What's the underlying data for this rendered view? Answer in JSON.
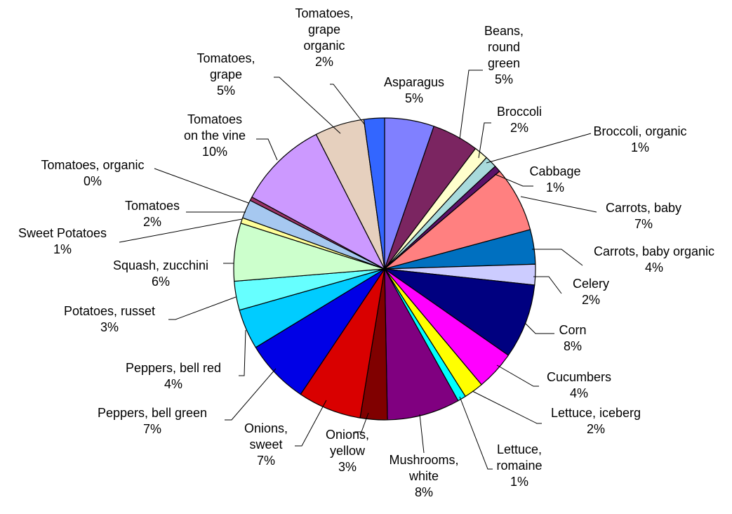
{
  "chart_data": {
    "type": "pie",
    "title": "",
    "start_angle_deg": 0,
    "direction": "clockwise",
    "slices": [
      {
        "label": "Asparagus",
        "value": 5.3,
        "pct_label": "5%",
        "color": "#8080FF"
      },
      {
        "label": "Beans, round green",
        "value": 5.0,
        "pct_label": "5%",
        "color": "#7B2561"
      },
      {
        "label": "Broccoli",
        "value": 1.5,
        "pct_label": "2%",
        "color": "#FFFFCC"
      },
      {
        "label": "Broccoli, organic",
        "value": 1.3,
        "pct_label": "1%",
        "color": "#A8DADC"
      },
      {
        "label": "Cabbage",
        "value": 0.7,
        "pct_label": "1%",
        "color": "#5B1269"
      },
      {
        "label": "Carrots, baby",
        "value": 7.0,
        "pct_label": "7%",
        "color": "#FF8080"
      },
      {
        "label": "Carrots, baby organic",
        "value": 3.7,
        "pct_label": "4%",
        "color": "#0070C0"
      },
      {
        "label": "Celery",
        "value": 2.2,
        "pct_label": "2%",
        "color": "#CCCCFF"
      },
      {
        "label": "Corn",
        "value": 8.0,
        "pct_label": "8%",
        "color": "#000080"
      },
      {
        "label": "Cucumbers",
        "value": 4.2,
        "pct_label": "4%",
        "color": "#FF00FF"
      },
      {
        "label": "Lettuce, iceberg",
        "value": 2.1,
        "pct_label": "2%",
        "color": "#FFFF00"
      },
      {
        "label": "Lettuce, romaine",
        "value": 0.9,
        "pct_label": "1%",
        "color": "#00FFFF"
      },
      {
        "label": "Mushrooms, white",
        "value": 7.8,
        "pct_label": "8%",
        "color": "#800080"
      },
      {
        "label": "Onions, yellow",
        "value": 2.9,
        "pct_label": "3%",
        "color": "#800000"
      },
      {
        "label": "Onions, sweet",
        "value": 6.8,
        "pct_label": "7%",
        "color": "#D90000"
      },
      {
        "label": "Peppers, bell green",
        "value": 6.9,
        "pct_label": "7%",
        "color": "#0000E6"
      },
      {
        "label": "Peppers, bell red",
        "value": 4.3,
        "pct_label": "4%",
        "color": "#00CCFF"
      },
      {
        "label": "Potatoes, russet",
        "value": 3.1,
        "pct_label": "3%",
        "color": "#66FFFF"
      },
      {
        "label": "Squash, zucchini",
        "value": 6.2,
        "pct_label": "6%",
        "color": "#CCFFCC"
      },
      {
        "label": "Sweet Potatoes",
        "value": 0.6,
        "pct_label": "1%",
        "color": "#FFFF99"
      },
      {
        "label": "Tomatoes",
        "value": 2.0,
        "pct_label": "2%",
        "color": "#A6C8F0"
      },
      {
        "label": "Tomatoes, organic",
        "value": 0.4,
        "pct_label": "0%",
        "color": "#993366"
      },
      {
        "label": "Tomatoes on the vine",
        "value": 9.6,
        "pct_label": "10%",
        "color": "#CC99FF"
      },
      {
        "label": "Tomatoes, grape",
        "value": 5.3,
        "pct_label": "5%",
        "color": "#E6D0BE"
      },
      {
        "label": "Tomatoes, grape organic",
        "value": 2.2,
        "pct_label": "2%",
        "color": "#3366FF"
      }
    ]
  }
}
